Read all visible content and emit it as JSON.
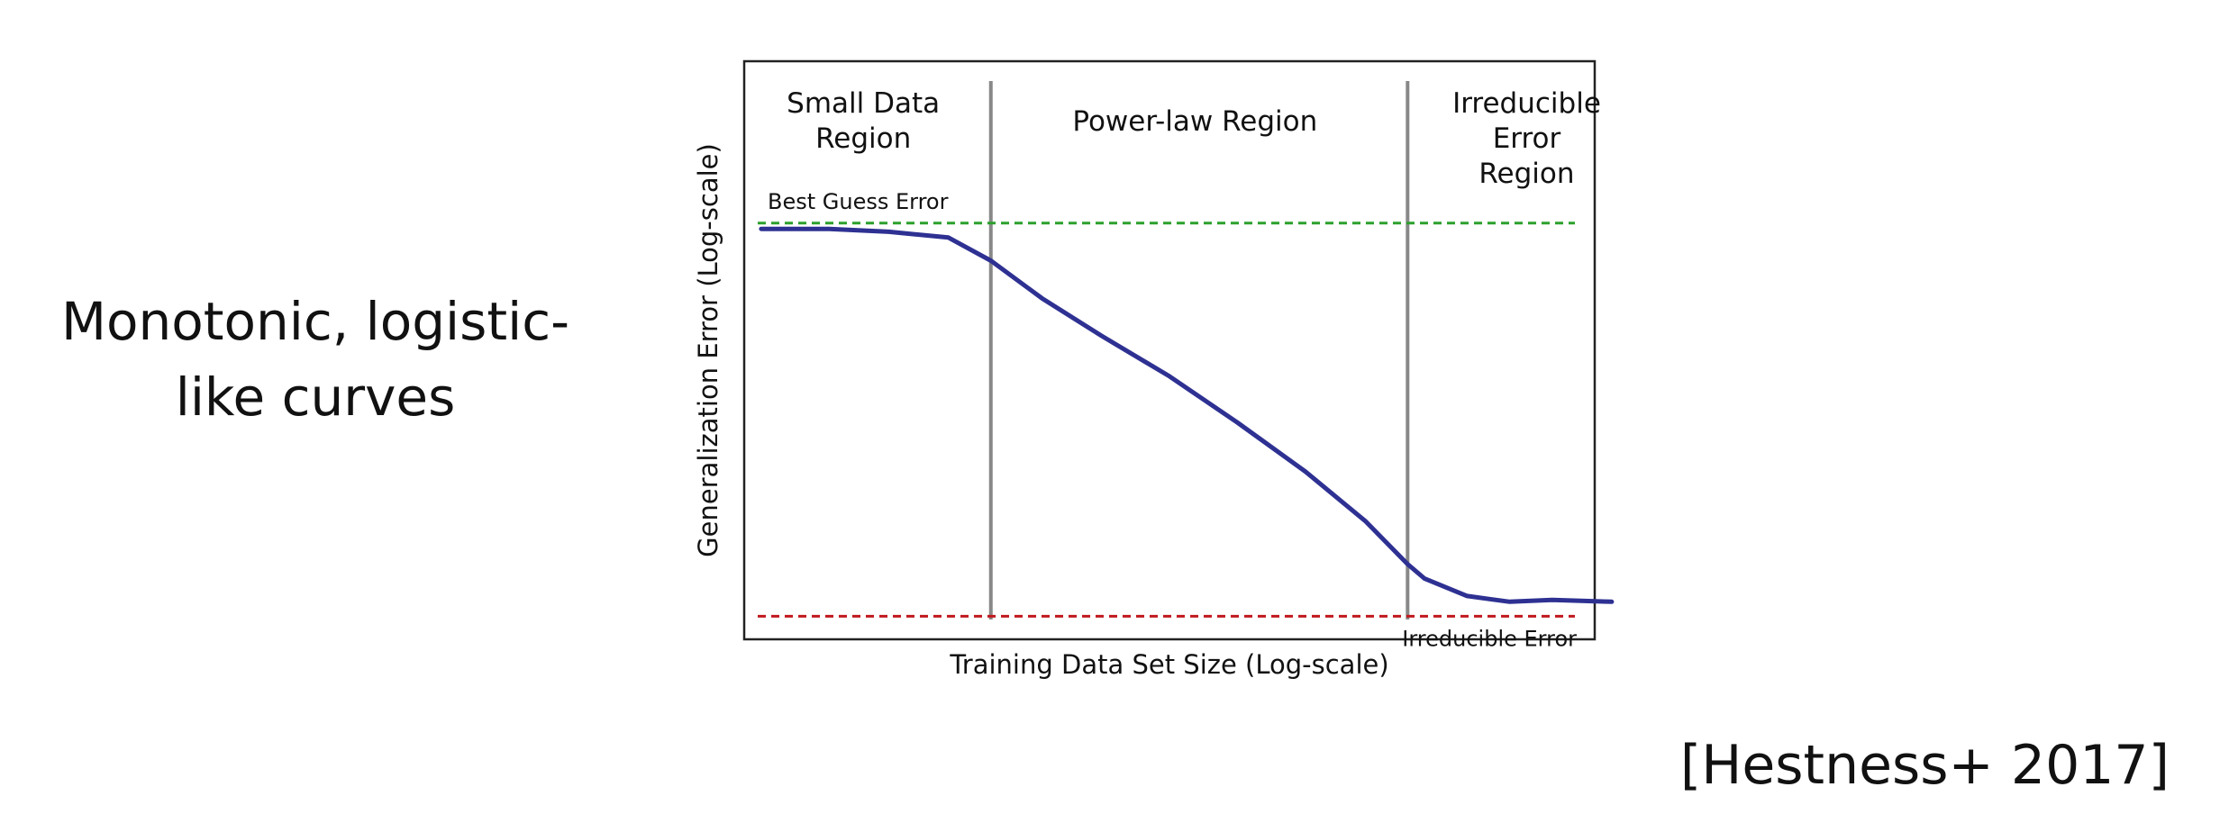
{
  "slide": {
    "caption_lines": [
      "Monotonic, logistic-",
      "like curves"
    ],
    "citation": "[Hestness+ 2017]"
  },
  "chart_data": {
    "type": "line",
    "title": "",
    "xlabel": "Training Data Set Size (Log-scale)",
    "ylabel": "Generalization Error (Log-scale)",
    "xlim": [
      0,
      100
    ],
    "ylim": [
      0,
      100
    ],
    "grid": false,
    "series": [
      {
        "x": [
          2,
          10,
          17,
          24,
          29,
          35,
          42,
          50,
          58,
          66,
          73,
          78,
          80,
          85,
          90,
          95,
          102
        ],
        "y": [
          71,
          71,
          70.5,
          69.5,
          65.5,
          59,
          52.5,
          45.5,
          37.5,
          29,
          20.5,
          13,
          10.5,
          7.5,
          6.5,
          6.8,
          6.5
        ],
        "color": "#2e3192"
      }
    ],
    "reference_lines": [
      {
        "label": "Best Guess Error",
        "y": 72,
        "color": "#2ca02c"
      },
      {
        "label": "Irreducible Error",
        "y": 4,
        "color": "#c0191f"
      }
    ],
    "region_boundaries": [
      {
        "x": 29,
        "color": "#888888"
      },
      {
        "x": 78,
        "color": "#888888"
      }
    ],
    "regions": [
      {
        "lines": [
          "Small Data",
          "Region"
        ],
        "x": 14
      },
      {
        "lines": [
          "Power-law Region"
        ],
        "x": 53
      },
      {
        "lines": [
          "Irreducible",
          "Error",
          "Region"
        ],
        "x": 92
      }
    ]
  }
}
